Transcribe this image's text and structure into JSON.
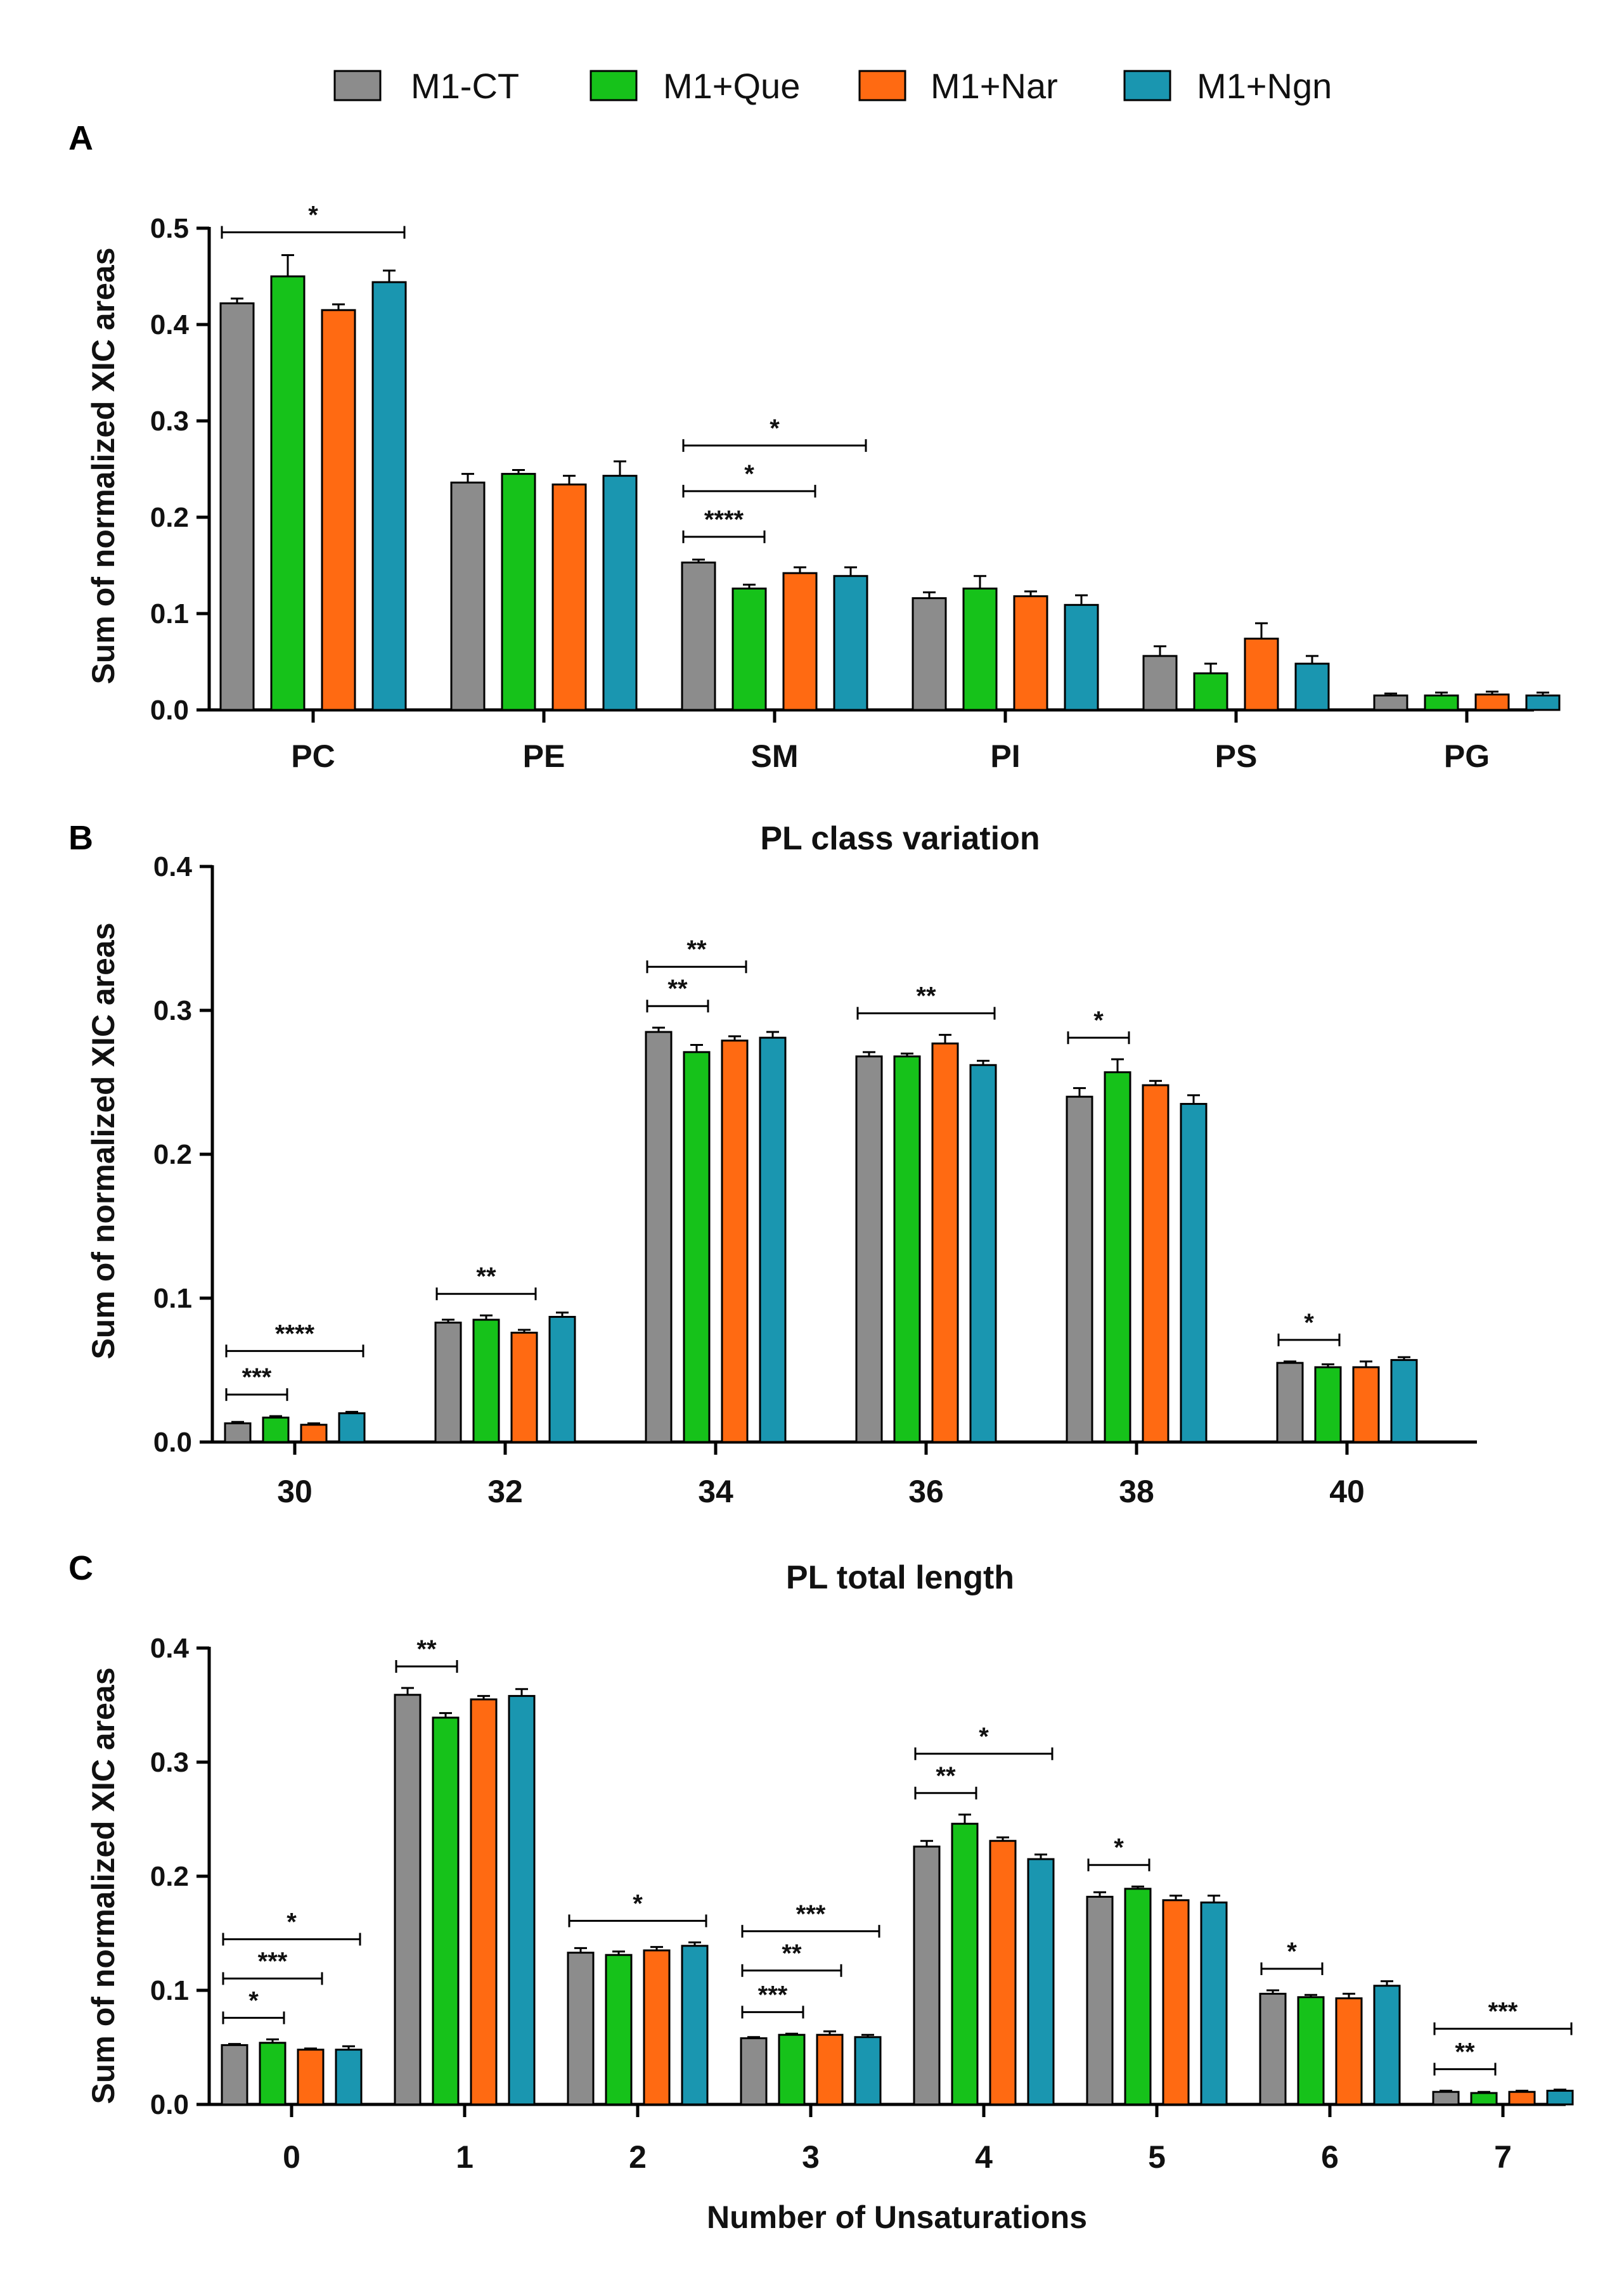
{
  "legend": [
    {
      "label": "M1-CT",
      "color": "#8c8c8c"
    },
    {
      "label": "M1+Que",
      "color": "#16c21a"
    },
    {
      "label": "M1+Nar",
      "color": "#ff6a12"
    },
    {
      "label": "M1+Ngn",
      "color": "#1a96b0"
    }
  ],
  "chart_data": [
    {
      "panel": "A",
      "type": "bar",
      "title": "",
      "xlabel": "",
      "ylabel": "Sum of normalized XIC areas",
      "ylim": [
        0,
        0.5
      ],
      "yticks": [
        0.0,
        0.1,
        0.2,
        0.3,
        0.4,
        0.5
      ],
      "ytick_labels": [
        "0.0",
        "0.1",
        "0.2",
        "0.3",
        "0.4",
        "0.5"
      ],
      "categories": [
        "PC",
        "PE",
        "SM",
        "PI",
        "PS",
        "PG"
      ],
      "series": [
        {
          "name": "M1-CT",
          "values": [
            0.422,
            0.236,
            0.153,
            0.116,
            0.056,
            0.015
          ],
          "errors": [
            0.005,
            0.009,
            0.003,
            0.006,
            0.01,
            0.002
          ]
        },
        {
          "name": "M1+Que",
          "values": [
            0.45,
            0.245,
            0.126,
            0.126,
            0.038,
            0.015
          ],
          "errors": [
            0.022,
            0.004,
            0.004,
            0.013,
            0.01,
            0.003
          ]
        },
        {
          "name": "M1+Nar",
          "values": [
            0.415,
            0.234,
            0.142,
            0.118,
            0.074,
            0.016
          ],
          "errors": [
            0.006,
            0.009,
            0.006,
            0.005,
            0.016,
            0.003
          ]
        },
        {
          "name": "M1+Ngn",
          "values": [
            0.444,
            0.243,
            0.139,
            0.109,
            0.048,
            0.015
          ],
          "errors": [
            0.012,
            0.015,
            0.009,
            0.01,
            0.008,
            0.003
          ]
        }
      ],
      "significance": [
        {
          "category": "PC",
          "from": "M1-CT",
          "to": "M1+Ngn",
          "label": "*",
          "level": 1
        },
        {
          "category": "SM",
          "from": "M1-CT",
          "to": "M1+Que",
          "label": "****",
          "level": 1
        },
        {
          "category": "SM",
          "from": "M1-CT",
          "to": "M1+Nar",
          "label": "*",
          "level": 2
        },
        {
          "category": "SM",
          "from": "M1-CT",
          "to": "M1+Ngn",
          "label": "*",
          "level": 3
        }
      ]
    },
    {
      "panel": "B",
      "type": "bar",
      "title": "PL class variation",
      "xlabel": "",
      "ylabel": "Sum of normalized XIC areas",
      "ylim": [
        0,
        0.4
      ],
      "yticks": [
        0.0,
        0.1,
        0.2,
        0.3,
        0.4
      ],
      "ytick_labels": [
        "0.0",
        "0.1",
        "0.2",
        "0.3",
        "0.4"
      ],
      "categories": [
        "30",
        "32",
        "34",
        "36",
        "38",
        "40"
      ],
      "series": [
        {
          "name": "M1-CT",
          "values": [
            0.013,
            0.083,
            0.285,
            0.268,
            0.24,
            0.055
          ],
          "errors": [
            0.001,
            0.002,
            0.003,
            0.003,
            0.006,
            0.001
          ]
        },
        {
          "name": "M1+Que",
          "values": [
            0.017,
            0.085,
            0.271,
            0.268,
            0.257,
            0.052
          ],
          "errors": [
            0.001,
            0.003,
            0.005,
            0.002,
            0.009,
            0.002
          ]
        },
        {
          "name": "M1+Nar",
          "values": [
            0.012,
            0.076,
            0.279,
            0.277,
            0.248,
            0.052
          ],
          "errors": [
            0.001,
            0.002,
            0.003,
            0.006,
            0.003,
            0.004
          ]
        },
        {
          "name": "M1+Ngn",
          "values": [
            0.02,
            0.087,
            0.281,
            0.262,
            0.235,
            0.057
          ],
          "errors": [
            0.001,
            0.003,
            0.004,
            0.003,
            0.006,
            0.002
          ]
        }
      ],
      "significance": [
        {
          "category": "30",
          "from": "M1-CT",
          "to": "M1+Que",
          "label": "***",
          "level": 1
        },
        {
          "category": "30",
          "from": "M1-CT",
          "to": "M1+Ngn",
          "label": "****",
          "level": 2
        },
        {
          "category": "32",
          "from": "M1-CT",
          "to": "M1+Nar",
          "label": "**",
          "level": 1
        },
        {
          "category": "34",
          "from": "M1-CT",
          "to": "M1+Que",
          "label": "**",
          "level": 1
        },
        {
          "category": "34",
          "from": "M1-CT",
          "to": "M1+Nar",
          "label": "**",
          "level": 2
        },
        {
          "category": "36",
          "from": "M1-CT",
          "to": "M1+Ngn",
          "label": "**",
          "level": 1
        },
        {
          "category": "38",
          "from": "M1-CT",
          "to": "M1+Que",
          "label": "*",
          "level": 1
        },
        {
          "category": "40",
          "from": "M1-CT",
          "to": "M1+Que",
          "label": "*",
          "level": 1
        }
      ]
    },
    {
      "panel": "C",
      "type": "bar",
      "title": "PL total length",
      "xlabel": "Number of Unsaturations",
      "ylabel": "Sum of normalized XIC areas",
      "ylim": [
        0,
        0.4
      ],
      "yticks": [
        0.0,
        0.1,
        0.2,
        0.3,
        0.4
      ],
      "ytick_labels": [
        "0.0",
        "0.1",
        "0.2",
        "0.3",
        "0.4"
      ],
      "categories": [
        "0",
        "1",
        "2",
        "3",
        "4",
        "5",
        "6",
        "7"
      ],
      "series": [
        {
          "name": "M1-CT",
          "values": [
            0.052,
            0.359,
            0.133,
            0.058,
            0.226,
            0.182,
            0.097,
            0.011
          ],
          "errors": [
            0.001,
            0.006,
            0.004,
            0.001,
            0.005,
            0.004,
            0.003,
            0.001
          ]
        },
        {
          "name": "M1+Que",
          "values": [
            0.054,
            0.339,
            0.131,
            0.061,
            0.246,
            0.189,
            0.094,
            0.01
          ],
          "errors": [
            0.003,
            0.004,
            0.003,
            0.001,
            0.008,
            0.002,
            0.002,
            0.001
          ]
        },
        {
          "name": "M1+Nar",
          "values": [
            0.048,
            0.355,
            0.135,
            0.061,
            0.231,
            0.179,
            0.093,
            0.011
          ],
          "errors": [
            0.001,
            0.003,
            0.003,
            0.003,
            0.003,
            0.004,
            0.004,
            0.001
          ]
        },
        {
          "name": "M1+Ngn",
          "values": [
            0.048,
            0.358,
            0.139,
            0.059,
            0.215,
            0.177,
            0.104,
            0.012
          ],
          "errors": [
            0.003,
            0.006,
            0.003,
            0.002,
            0.004,
            0.006,
            0.004,
            0.001
          ]
        }
      ],
      "significance": [
        {
          "category": "0",
          "from": "M1-CT",
          "to": "M1+Que",
          "label": "*",
          "level": 1
        },
        {
          "category": "0",
          "from": "M1-CT",
          "to": "M1+Nar",
          "label": "***",
          "level": 2
        },
        {
          "category": "0",
          "from": "M1-CT",
          "to": "M1+Ngn",
          "label": "*",
          "level": 3
        },
        {
          "category": "1",
          "from": "M1-CT",
          "to": "M1+Que",
          "label": "**",
          "level": 1
        },
        {
          "category": "2",
          "from": "M1-CT",
          "to": "M1+Ngn",
          "label": "*",
          "level": 1
        },
        {
          "category": "3",
          "from": "M1-CT",
          "to": "M1+Que",
          "label": "***",
          "level": 1
        },
        {
          "category": "3",
          "from": "M1-CT",
          "to": "M1+Nar",
          "label": "**",
          "level": 2
        },
        {
          "category": "3",
          "from": "M1-CT",
          "to": "M1+Ngn",
          "label": "***",
          "level": 3
        },
        {
          "category": "4",
          "from": "M1-CT",
          "to": "M1+Que",
          "label": "**",
          "level": 1
        },
        {
          "category": "4",
          "from": "M1-CT",
          "to": "M1+Ngn",
          "label": "*",
          "level": 2
        },
        {
          "category": "5",
          "from": "M1-CT",
          "to": "M1+Que",
          "label": "*",
          "level": 1
        },
        {
          "category": "6",
          "from": "M1-CT",
          "to": "M1+Que",
          "label": "*",
          "level": 1
        },
        {
          "category": "7",
          "from": "M1-CT",
          "to": "M1+Que",
          "label": "**",
          "level": 1
        },
        {
          "category": "7",
          "from": "M1-CT",
          "to": "M1+Ngn",
          "label": "***",
          "level": 2
        }
      ]
    }
  ]
}
